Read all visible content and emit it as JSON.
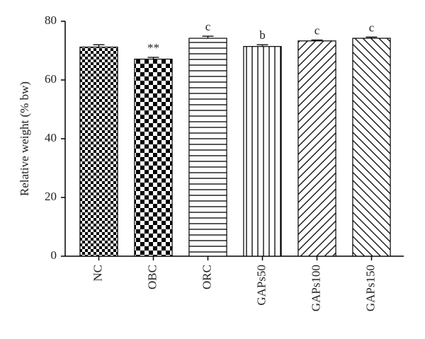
{
  "chart_data": {
    "type": "bar",
    "y_label": "Relative weight (% bw)",
    "categories": [
      "NC",
      "OBC",
      "ORC",
      "GAPs50",
      "GAPs100",
      "GAPs150"
    ],
    "values": [
      71.2,
      67.1,
      74.2,
      71.4,
      73.3,
      74.2
    ],
    "errors": [
      0.8,
      0.6,
      0.7,
      0.6,
      0.3,
      0.4
    ],
    "annotations": [
      null,
      "**",
      "c",
      "b",
      "c",
      "c"
    ],
    "color": "#000000",
    "ylim": [
      0,
      80
    ],
    "yticks": [
      0,
      20,
      40,
      60,
      80
    ]
  }
}
